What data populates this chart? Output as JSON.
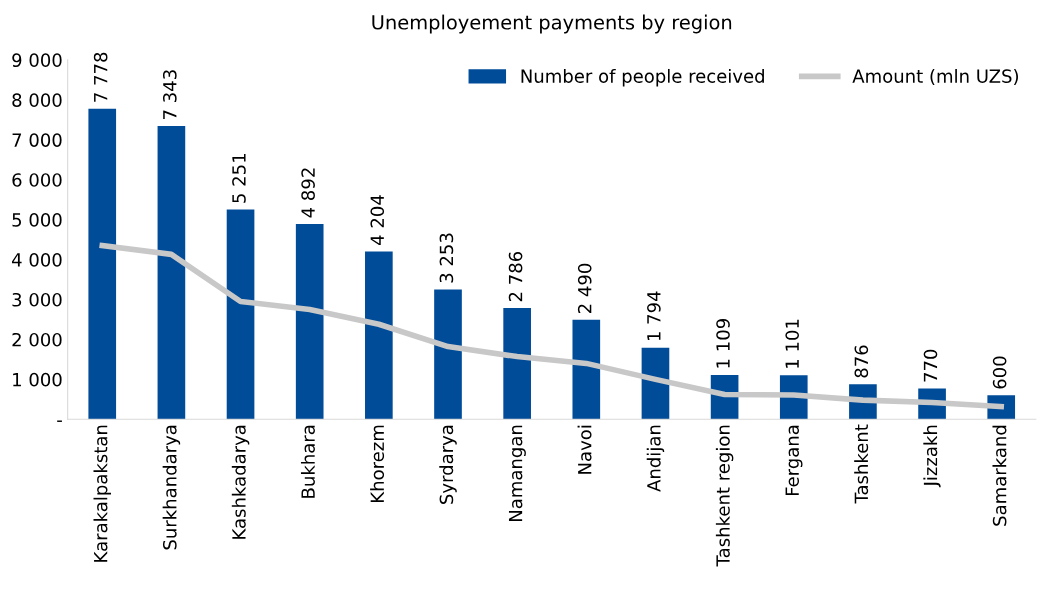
{
  "chart_data": {
    "type": "bar",
    "title": "Unemployement payments by region",
    "categories": [
      "Karakalpakstan",
      "Surkhandarya",
      "Kashkadarya",
      "Bukhara",
      "Khorezm",
      "Syrdarya",
      "Namangan",
      "Navoi",
      "Andijan",
      "Tashkent region",
      "Fergana",
      "Tashkent",
      "Jizzakh",
      "Samarkand"
    ],
    "series": [
      {
        "name": "Number of people received",
        "color": "#004c99",
        "values": [
          7778,
          7343,
          5251,
          4892,
          4204,
          3253,
          2786,
          2490,
          1794,
          1109,
          1101,
          876,
          770,
          600
        ],
        "value_labels": [
          "7 778",
          "7 343",
          "5 251",
          "4 892",
          "4 204",
          "3 253",
          "2 786",
          "2 490",
          "1 794",
          "1 109",
          "1 101",
          "876",
          "770",
          "600"
        ]
      },
      {
        "name": "Amount (mln UZS)",
        "type": "line",
        "color": "#c8c8c8",
        "values": [
          4350,
          4130,
          2950,
          2750,
          2380,
          1820,
          1570,
          1400,
          1000,
          620,
          610,
          480,
          420,
          320
        ]
      }
    ],
    "ylim": [
      0,
      9000
    ],
    "yticks": [
      {
        "value": 0,
        "label": "-"
      },
      {
        "value": 1000,
        "label": "1 000"
      },
      {
        "value": 2000,
        "label": "2 000"
      },
      {
        "value": 3000,
        "label": "3 000"
      },
      {
        "value": 4000,
        "label": "4 000"
      },
      {
        "value": 5000,
        "label": "5 000"
      },
      {
        "value": 6000,
        "label": "6 000"
      },
      {
        "value": 7000,
        "label": "7 000"
      },
      {
        "value": 8000,
        "label": "8 000"
      },
      {
        "value": 9000,
        "label": "9 000"
      }
    ],
    "legend": "top right",
    "grid": false,
    "marker": "none",
    "line_style": "solid"
  }
}
